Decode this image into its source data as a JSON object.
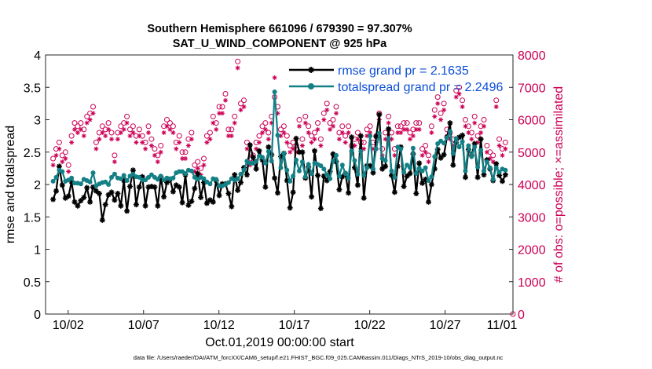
{
  "chart_data": {
    "type": "line",
    "title_line1": "Southern Hemisphere 661096 / 679390 = 97.307%",
    "title_line2": "SAT_U_WIND_COMPONENT @ 925 hPa",
    "xlabel": "Oct.01,2019 00:00:00 start",
    "ylabel_left": "rmse and totalspread",
    "ylabel_right": "# of obs: o=possible; ×=assimilated",
    "footer": "data file: /Users/raeder/DAI/ATM_forcXX/CAM6_setup/f.e21.FHIST_BGC.f09_025.CAM6assim.011/Diags_NTrS_2019-10/obs_diag_output.nc",
    "xlim": [
      0.5,
      31.5
    ],
    "ylim_left": [
      0,
      4
    ],
    "ylim_right": [
      0,
      8000
    ],
    "x_ticks": [
      {
        "day": 2,
        "label": "10/02"
      },
      {
        "day": 7,
        "label": "10/07"
      },
      {
        "day": 12,
        "label": "10/12"
      },
      {
        "day": 17,
        "label": "10/17"
      },
      {
        "day": 22,
        "label": "10/22"
      },
      {
        "day": 27,
        "label": "10/27"
      },
      {
        "day": 32,
        "label": "11/01"
      }
    ],
    "y_ticks_left": [
      "0",
      "0.5",
      "1",
      "1.5",
      "2",
      "2.5",
      "3",
      "3.5",
      "4"
    ],
    "y_ticks_right": [
      "0",
      "1000",
      "2000",
      "3000",
      "4000",
      "5000",
      "6000",
      "7000",
      "8000"
    ],
    "series": [
      {
        "name": "rmse grand pr = 2.1635",
        "color": "#000000",
        "marker": "asterisk",
        "values": [
          1.77,
          1.9,
          2.28,
          1.99,
          1.79,
          1.82,
          2.04,
          1.73,
          1.67,
          1.75,
          1.8,
          1.95,
          1.73,
          1.96,
          1.9,
          1.86,
          1.45,
          1.69,
          1.84,
          1.88,
          1.76,
          1.86,
          1.67,
          2.06,
          1.59,
          1.97,
          2.22,
          1.69,
          1.96,
          2.12,
          1.67,
          1.96,
          1.97,
          1.96,
          1.67,
          2.12,
          1.81,
          2.03,
          2.08,
          1.89,
          1.99,
          1.96,
          1.72,
          2.15,
          1.68,
          1.74,
          1.94,
          2.17,
          1.8,
          2.03,
          1.71,
          1.76,
          1.73,
          2.06,
          1.83,
          2.01,
          2.01,
          1.86,
          1.66,
          2.15,
          1.91,
          2.03,
          2.26,
          2.15,
          2.61,
          2.42,
          2.24,
          2.52,
          2.38,
          1.96,
          2.58,
          2.46,
          2.1,
          1.87,
          2.43,
          2.48,
          2.06,
          1.64,
          1.88,
          2.71,
          2.5,
          2.5,
          2.1,
          2.27,
          1.81,
          2.52,
          2.14,
          1.63,
          2.13,
          2.06,
          2.2,
          2.47,
          2.35,
          1.92,
          2.12,
          2.17,
          1.87,
          2.73,
          2.26,
          1.99,
          2.75,
          1.79,
          2.29,
          2.29,
          2.18,
          2.74,
          3.08,
          2.24,
          2.28,
          2.86,
          2.14,
          1.88,
          2.28,
          2.58,
          1.97,
          2.13,
          2.17,
          2.47,
          1.86,
          2.33,
          2.02,
          2.08,
          1.73,
          2.0,
          2.24,
          2.54,
          2.41,
          2.46,
          2.73,
          2.95,
          2.3,
          2.65,
          2.73,
          2.76,
          2.11,
          2.54,
          2.45,
          2.63,
          2.11,
          2.7,
          2.15,
          2.38,
          2.24,
          2.06,
          2.32,
          2.14,
          2.05,
          2.15
        ]
      },
      {
        "name": "totalspread grand pr = 2.2496",
        "color": "#138086",
        "marker": "circle",
        "values": [
          2.05,
          2.11,
          2.22,
          2.2,
          2.05,
          2.07,
          2.1,
          2.02,
          2.02,
          2.01,
          2.08,
          2.06,
          2.04,
          2.18,
          1.98,
          2.01,
          2.03,
          2.04,
          2.0,
          2.11,
          2.16,
          2.1,
          2.09,
          2.14,
          2.06,
          2.13,
          2.16,
          2.12,
          2.11,
          2.07,
          2.07,
          2.11,
          2.15,
          2.11,
          2.08,
          2.13,
          2.07,
          2.1,
          2.09,
          2.1,
          2.18,
          2.2,
          2.2,
          2.17,
          2.22,
          2.21,
          2.11,
          2.08,
          2.11,
          2.09,
          2.04,
          2.01,
          2.09,
          2.08,
          1.98,
          1.98,
          2.0,
          2.03,
          2.09,
          2.07,
          2.09,
          2.16,
          2.22,
          2.36,
          2.33,
          2.33,
          2.36,
          2.44,
          2.42,
          2.33,
          2.51,
          2.36,
          3.43,
          2.76,
          2.26,
          2.48,
          2.22,
          2.05,
          2.13,
          2.38,
          2.21,
          2.35,
          2.12,
          2.31,
          2.17,
          2.33,
          2.31,
          2.29,
          2.24,
          2.15,
          2.09,
          2.36,
          2.45,
          2.13,
          2.3,
          2.17,
          2.1,
          2.52,
          2.37,
          2.16,
          2.51,
          2.14,
          2.26,
          2.75,
          2.24,
          2.55,
          2.79,
          2.4,
          2.37,
          2.71,
          2.21,
          2.11,
          2.58,
          2.55,
          2.19,
          2.3,
          2.26,
          2.56,
          2.17,
          2.25,
          2.21,
          2.26,
          2.06,
          2.12,
          2.43,
          2.63,
          2.67,
          2.64,
          2.72,
          2.82,
          2.48,
          2.71,
          2.58,
          2.66,
          2.21,
          2.6,
          2.43,
          2.58,
          2.27,
          2.53,
          2.21,
          2.35,
          2.26,
          2.08,
          2.26,
          2.19,
          2.24,
          2.22
        ]
      },
      {
        "name": "possible",
        "color": "#cc0055",
        "marker": "open-circle",
        "axis": "right",
        "values": [
          4800,
          5100,
          5300,
          4900,
          5000,
          4600,
          5500,
          5900,
          5800,
          5900,
          5700,
          6100,
          6200,
          6400,
          5300,
          5600,
          5800,
          5700,
          5900,
          5600,
          4900,
          5600,
          5800,
          5900,
          6100,
          5700,
          5800,
          5500,
          5700,
          5500,
          5300,
          5800,
          5400,
          5100,
          4900,
          5200,
          5800,
          6000,
          5900,
          5800,
          5300,
          5500,
          5000,
          5000,
          5400,
          5600,
          4600,
          4700,
          4500,
          4800,
          5500,
          5600,
          6100,
          5900,
          6400,
          6400,
          6800,
          5700,
          5700,
          6100,
          7800,
          6500,
          6600,
          5300,
          4800,
          4900,
          5300,
          5500,
          5800,
          5900,
          5600,
          6100,
          6700,
          6400,
          5700,
          5800,
          5500,
          5200,
          5300,
          5200,
          6000,
          5400,
          6100,
          5800,
          5500,
          5600,
          5900,
          5400,
          6200,
          6500,
          5900,
          6000,
          6400,
          5600,
          5800,
          5500,
          5800,
          5200,
          5400,
          5600,
          5300,
          5300,
          5700,
          5800,
          5300,
          5500,
          6200,
          5100,
          5600,
          6100,
          5600,
          5100,
          5800,
          5800,
          5900,
          5900,
          5600,
          5700,
          5900,
          5900,
          5100,
          5200,
          4900,
          5800,
          6300,
          6700,
          6200,
          6500,
          5700,
          5600,
          5400,
          6900,
          7000,
          6600,
          6000,
          5800,
          5600,
          6100,
          5500,
          5800,
          6000,
          5200,
          5000,
          4900,
          6600,
          5400,
          5100,
          5300
        ]
      },
      {
        "name": "assimilated",
        "color": "#cc0055",
        "marker": "asterisk",
        "axis": "right",
        "values": [
          4600,
          4900,
          5100,
          4700,
          4800,
          4400,
          5300,
          5700,
          5600,
          5700,
          5500,
          5900,
          6000,
          6200,
          5100,
          5400,
          5600,
          5500,
          5700,
          5400,
          4700,
          5400,
          5600,
          5700,
          5900,
          5500,
          5600,
          5300,
          5500,
          5300,
          5100,
          5600,
          5200,
          4900,
          4700,
          5000,
          5600,
          5800,
          5700,
          5600,
          5100,
          5300,
          4800,
          4800,
          5200,
          5400,
          4400,
          4500,
          4300,
          4600,
          5300,
          5400,
          5900,
          5700,
          6200,
          6200,
          6600,
          5500,
          5500,
          5900,
          7600,
          6300,
          6400,
          5100,
          4600,
          4700,
          5100,
          5300,
          5600,
          5700,
          5400,
          5900,
          7300,
          6200,
          5500,
          5600,
          5300,
          5000,
          5100,
          5000,
          5800,
          5200,
          5900,
          5600,
          5300,
          5400,
          5700,
          5200,
          6000,
          6300,
          5700,
          5800,
          6200,
          5400,
          5600,
          5300,
          5600,
          5000,
          5200,
          5400,
          5100,
          5100,
          5500,
          5600,
          5100,
          5300,
          6000,
          4900,
          5400,
          5900,
          5400,
          4900,
          5600,
          5600,
          5700,
          5700,
          5400,
          5500,
          5700,
          5700,
          4900,
          5000,
          4700,
          5600,
          6100,
          6500,
          6000,
          6300,
          5500,
          5400,
          5200,
          6700,
          6800,
          6400,
          5800,
          5600,
          5400,
          5900,
          5300,
          5600,
          5800,
          5000,
          4800,
          4700,
          6400,
          5200,
          4900,
          5100
        ]
      }
    ]
  }
}
